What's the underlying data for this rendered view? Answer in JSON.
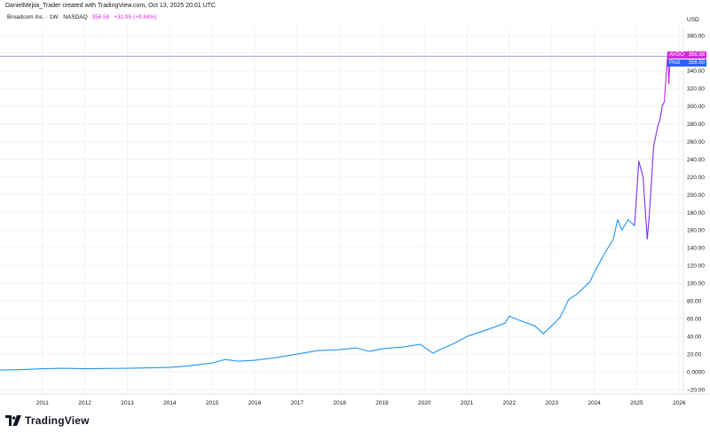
{
  "header": {
    "caption": "DanielMejiia_Trader created with TradingView.com, Oct 13, 2025 20:01 UTC"
  },
  "legend": {
    "symbol_line": "Broadcom Inc. · 1W · NASDAQ",
    "price": "356.58",
    "change": "+31.95 (+9.84%)"
  },
  "footer": {
    "brand": "TradingView"
  },
  "tags": {
    "last": {
      "label": "AVGO",
      "value": "356.58",
      "color": "#d62ad6"
    },
    "post": {
      "label": "Post",
      "value": "356.50",
      "color": "#2962ff"
    }
  },
  "colors": {
    "line_early": "#2196f3",
    "line_late": "#7b2ff2",
    "line_latest": "#c42be0",
    "post_line": "#b39ddb",
    "grid": "#f0f3fa",
    "axis_text": "#131722"
  },
  "chart_data": {
    "type": "line",
    "title": "",
    "xlabel": "",
    "ylabel": "",
    "y_unit": "USD",
    "ylim": [
      -25,
      390
    ],
    "xlim": [
      2010.0,
      2026.1
    ],
    "x_ticks": [
      "2011",
      "2012",
      "2013",
      "2014",
      "2015",
      "2016",
      "2017",
      "2018",
      "2019",
      "2020",
      "2021",
      "2022",
      "2023",
      "2024",
      "2025",
      "2026"
    ],
    "y_ticks": [
      "380.00",
      "360.00",
      "340.00",
      "320.00",
      "300.00",
      "280.00",
      "260.00",
      "240.00",
      "220.00",
      "200.00",
      "180.00",
      "160.00",
      "140.00",
      "120.00",
      "100.00",
      "80.00",
      "60.00",
      "40.00",
      "20.00",
      "0.0000",
      "−20.00"
    ],
    "grid": true,
    "series": [
      {
        "x": [
          2010.0,
          2010.5,
          2011.0,
          2011.5,
          2012.0,
          2012.5,
          2013.0,
          2013.5,
          2014.0,
          2014.5,
          2015.0,
          2015.3,
          2015.6,
          2016.0,
          2016.5,
          2017.0,
          2017.5,
          2018.0,
          2018.4,
          2018.7,
          2019.0,
          2019.5,
          2019.9,
          2020.2,
          2020.4,
          2020.7,
          2021.0,
          2021.5,
          2021.9,
          2022.0,
          2022.3,
          2022.6,
          2022.8,
          2023.0,
          2023.2,
          2023.4,
          2023.6,
          2023.9,
          2024.0,
          2024.2,
          2024.3,
          2024.45,
          2024.55,
          2024.65,
          2024.8,
          2024.95
        ],
        "y": [
          2,
          2.5,
          3.5,
          4,
          3.5,
          3.8,
          4,
          4.5,
          5,
          7,
          10,
          14,
          12,
          13,
          16,
          20,
          24,
          25,
          27,
          23,
          26,
          28,
          31,
          21,
          26,
          32,
          40,
          48,
          55,
          63,
          57,
          52,
          43,
          52,
          62,
          82,
          88,
          102,
          112,
          130,
          138,
          150,
          172,
          160,
          172,
          165
        ]
      },
      {
        "x": [
          2024.95,
          2025.05,
          2025.15,
          2025.25,
          2025.3,
          2025.4,
          2025.5,
          2025.55,
          2025.6,
          2025.65
        ],
        "y": [
          165,
          238,
          220,
          150,
          178,
          255,
          278,
          285,
          300,
          305
        ]
      },
      {
        "x": [
          2025.65,
          2025.7,
          2025.73,
          2025.76,
          2025.79,
          2025.82
        ],
        "y": [
          305,
          340,
          360,
          325,
          360,
          356.58
        ]
      }
    ],
    "reference_line": 356.5
  }
}
